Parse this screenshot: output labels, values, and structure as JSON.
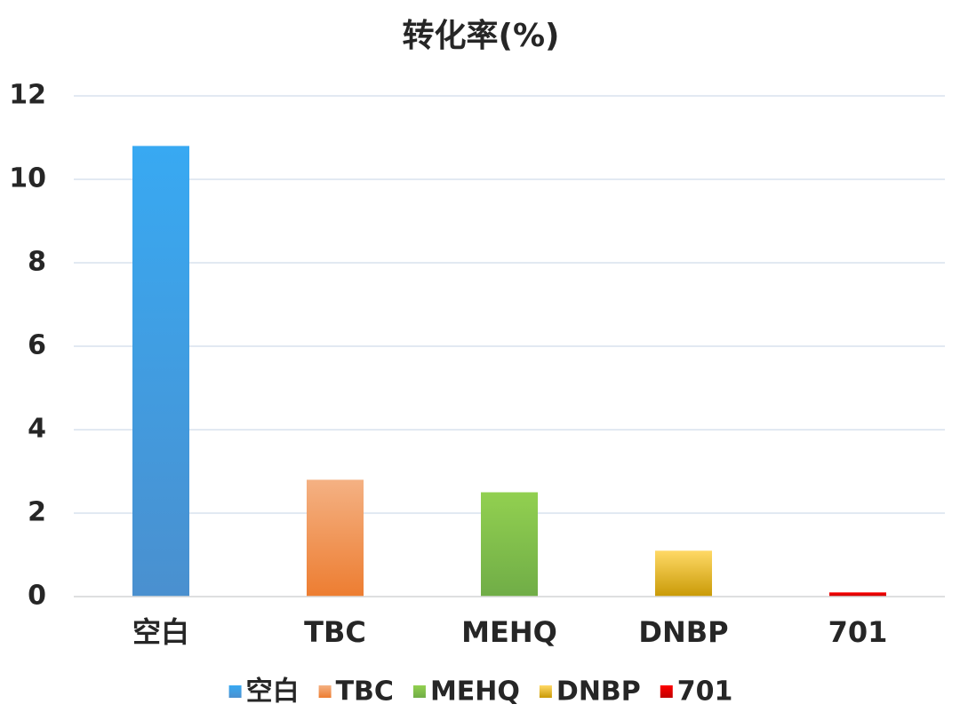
{
  "chart_data": {
    "type": "bar",
    "title": "转化率(%)",
    "categories": [
      "空白",
      "TBC",
      "MEHQ",
      "DNBP",
      "701"
    ],
    "values": [
      10.8,
      2.8,
      2.5,
      1.1,
      0.1
    ],
    "colors": [
      [
        "#38a9f2",
        "#4a90cf"
      ],
      [
        "#f4b183",
        "#ed7d31"
      ],
      [
        "#92d050",
        "#70ad47"
      ],
      [
        "#ffd966",
        "#c99a06"
      ],
      [
        "#ff0000",
        "#c00000"
      ]
    ],
    "ylim": [
      0,
      12
    ],
    "yticks": [
      0,
      2,
      4,
      6,
      8,
      10,
      12
    ],
    "grid": true,
    "legend": "bottom"
  }
}
